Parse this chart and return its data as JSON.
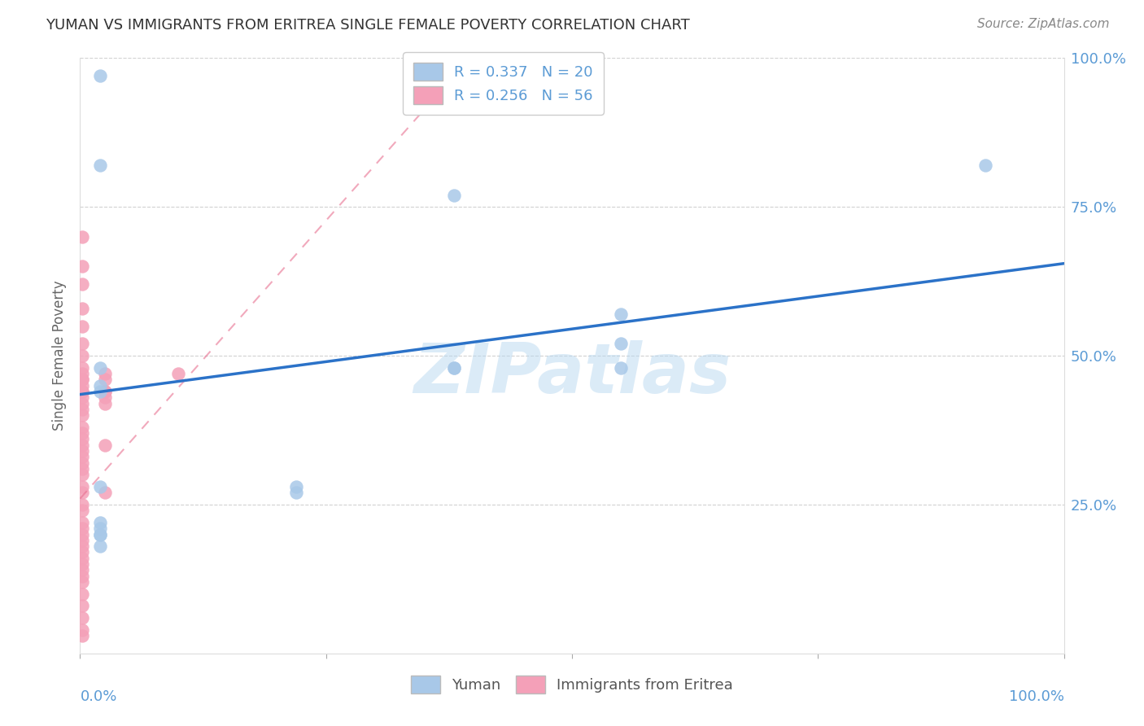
{
  "title": "YUMAN VS IMMIGRANTS FROM ERITREA SINGLE FEMALE POVERTY CORRELATION CHART",
  "source": "Source: ZipAtlas.com",
  "ylabel": "Single Female Poverty",
  "yuman_R": 0.337,
  "yuman_N": 20,
  "eritrea_R": 0.256,
  "eritrea_N": 56,
  "yuman_color": "#a8c8e8",
  "eritrea_color": "#f4a0b8",
  "trend_blue": "#2b72c8",
  "trend_pink_dash": "#e87090",
  "yuman_x": [
    0.02,
    0.02,
    0.38,
    0.02,
    0.55,
    0.92,
    0.55,
    0.02,
    0.38,
    0.02,
    0.02,
    0.22,
    0.22,
    0.02,
    0.02,
    0.02,
    0.02,
    0.02,
    0.38,
    0.55
  ],
  "yuman_y": [
    0.97,
    0.82,
    0.77,
    0.48,
    0.57,
    0.82,
    0.52,
    0.45,
    0.48,
    0.44,
    0.28,
    0.28,
    0.27,
    0.22,
    0.21,
    0.2,
    0.2,
    0.18,
    0.48,
    0.48
  ],
  "eritrea_x": [
    0.002,
    0.002,
    0.002,
    0.002,
    0.002,
    0.002,
    0.002,
    0.002,
    0.002,
    0.002,
    0.002,
    0.002,
    0.002,
    0.002,
    0.002,
    0.002,
    0.002,
    0.002,
    0.002,
    0.002,
    0.002,
    0.002,
    0.002,
    0.002,
    0.002,
    0.002,
    0.002,
    0.002,
    0.002,
    0.002,
    0.002,
    0.002,
    0.002,
    0.002,
    0.002,
    0.002,
    0.002,
    0.002,
    0.002,
    0.002,
    0.002,
    0.002,
    0.002,
    0.025,
    0.025,
    0.025,
    0.025,
    0.025,
    0.025,
    0.025,
    0.1,
    0.025,
    0.002,
    0.002,
    0.002,
    0.002
  ],
  "eritrea_y": [
    0.58,
    0.55,
    0.52,
    0.5,
    0.48,
    0.47,
    0.46,
    0.46,
    0.45,
    0.44,
    0.44,
    0.43,
    0.42,
    0.41,
    0.4,
    0.38,
    0.37,
    0.36,
    0.35,
    0.34,
    0.33,
    0.32,
    0.31,
    0.3,
    0.28,
    0.27,
    0.25,
    0.24,
    0.22,
    0.21,
    0.2,
    0.19,
    0.18,
    0.17,
    0.16,
    0.15,
    0.14,
    0.13,
    0.12,
    0.1,
    0.08,
    0.06,
    0.04,
    0.47,
    0.46,
    0.44,
    0.43,
    0.35,
    0.27,
    0.44,
    0.47,
    0.42,
    0.62,
    0.65,
    0.7,
    0.03
  ],
  "blue_trend_x0": 0.0,
  "blue_trend_y0": 0.435,
  "blue_trend_x1": 1.0,
  "blue_trend_y1": 0.655,
  "pink_trend_x0": 0.0,
  "pink_trend_y0": 0.26,
  "pink_trend_x1": 0.38,
  "pink_trend_y1": 0.97,
  "background_color": "#ffffff",
  "watermark_text": "ZIPatlas",
  "xlim": [
    0.0,
    1.0
  ],
  "ylim": [
    0.0,
    1.0
  ],
  "ytick_vals": [
    0.0,
    0.25,
    0.5,
    0.75,
    1.0
  ],
  "ytick_labels_right": [
    "",
    "25.0%",
    "50.0%",
    "75.0%",
    "100.0%"
  ],
  "grid_color": "#cccccc",
  "tick_color": "#5b9bd5",
  "title_color": "#333333",
  "source_color": "#888888"
}
